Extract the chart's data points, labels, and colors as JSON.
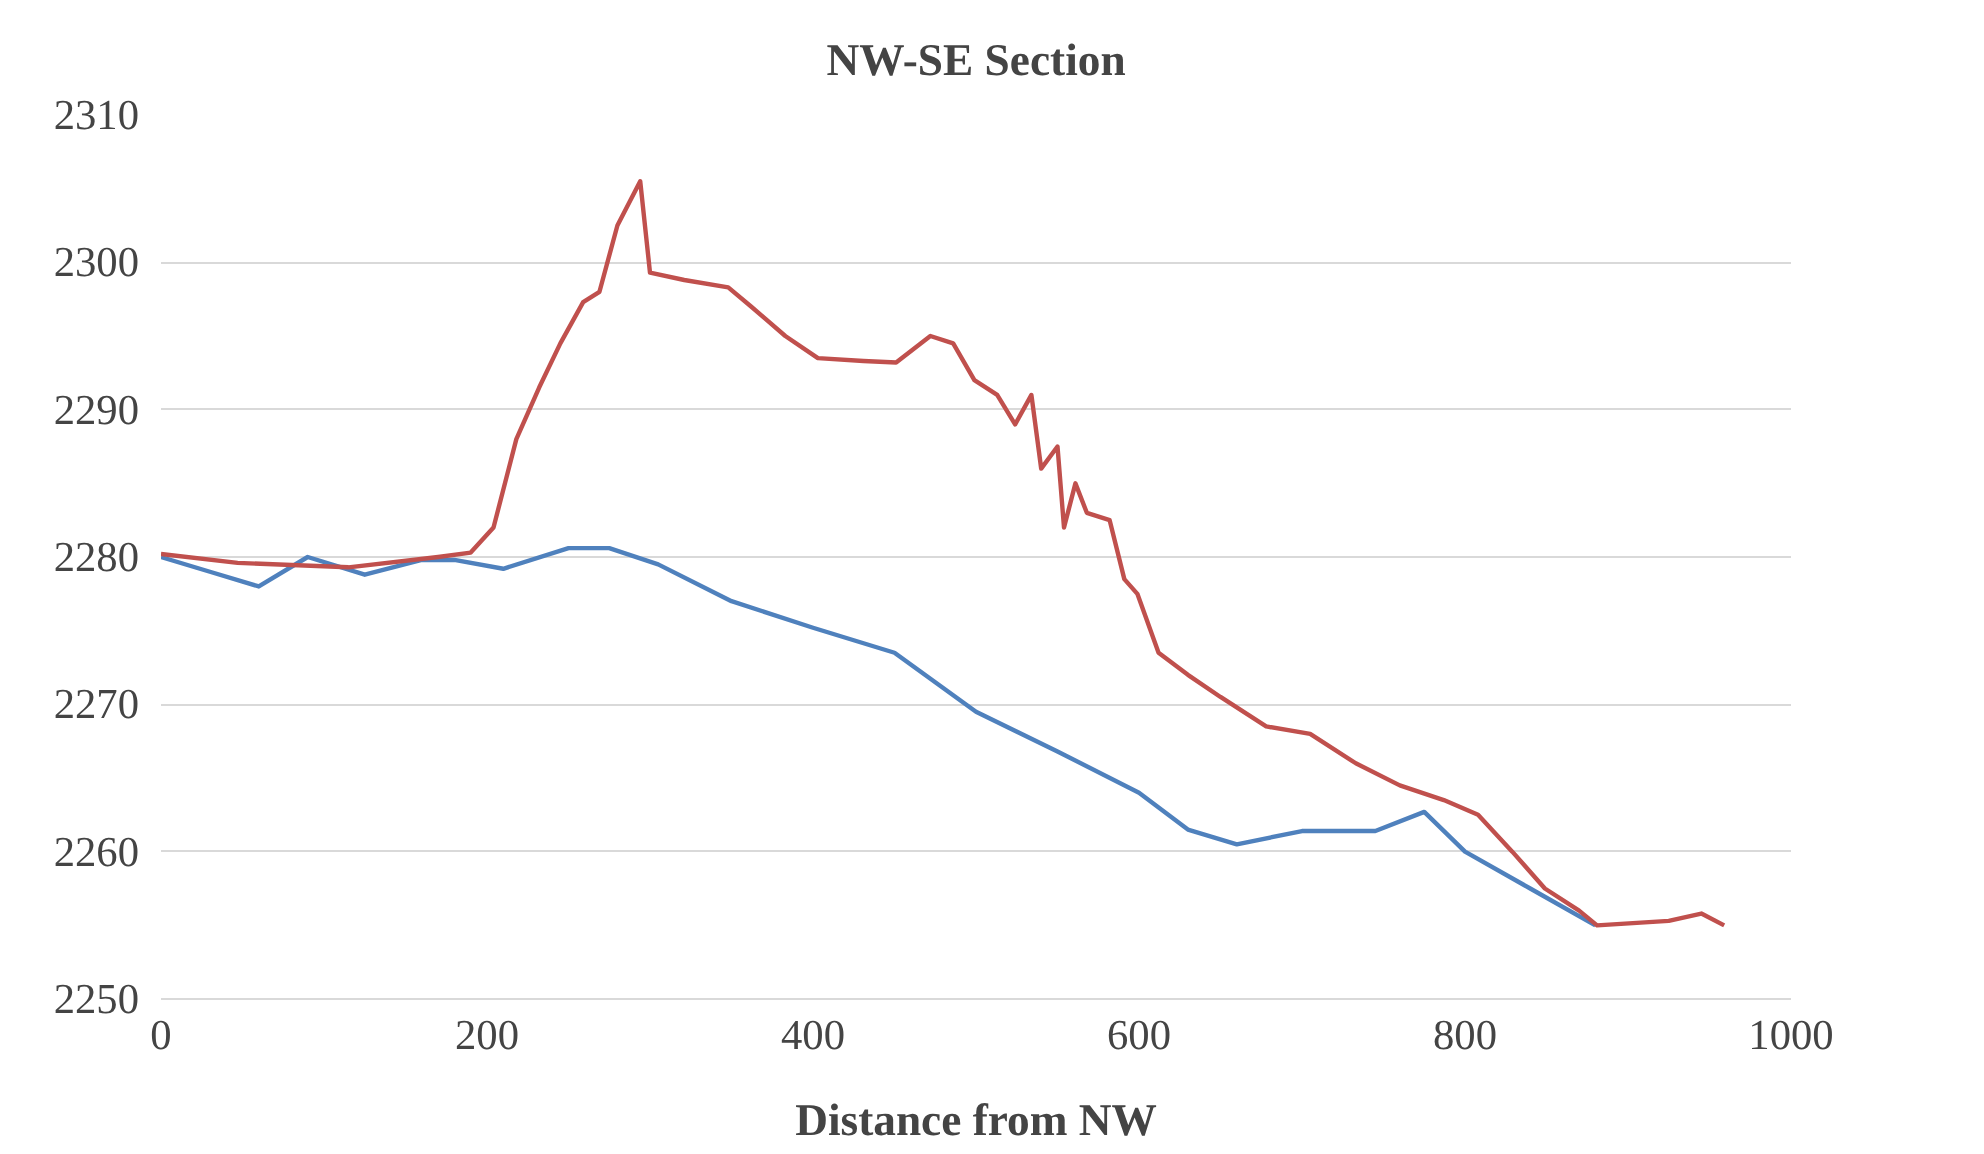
{
  "chart_data": {
    "type": "line",
    "title": "NW-SE Section",
    "xlabel": "Distance from NW",
    "xlim": [
      0,
      1000
    ],
    "xticks": [
      0,
      200,
      400,
      600,
      800,
      1000
    ],
    "ylim": [
      2250,
      2310
    ],
    "yticks": [
      2250,
      2260,
      2270,
      2280,
      2290,
      2300,
      2310
    ],
    "grid": "y",
    "series": [
      {
        "color": "#4f81bd",
        "x": [
          0,
          30,
          60,
          90,
          125,
          160,
          180,
          210,
          250,
          275,
          305,
          350,
          400,
          450,
          500,
          550,
          600,
          630,
          660,
          700,
          745,
          775,
          800,
          840,
          880
        ],
        "values": [
          2280,
          2279,
          2278,
          2280,
          2278.8,
          2279.8,
          2279.8,
          2279.2,
          2280.6,
          2280.6,
          2279.5,
          2277,
          2275.2,
          2273.5,
          2269.5,
          2266.8,
          2264,
          2261.5,
          2260.5,
          2261.4,
          2261.4,
          2262.7,
          2260,
          2257.5,
          2255
        ]
      },
      {
        "color": "#c0504d",
        "x": [
          0,
          47,
          115,
          170,
          190,
          204,
          218,
          232,
          245,
          259,
          269,
          280,
          294,
          300,
          321,
          348,
          362,
          383,
          403,
          431,
          451,
          472,
          486,
          499,
          513,
          524,
          534,
          540,
          550,
          554,
          561,
          568,
          582,
          591,
          599,
          612,
          630,
          650,
          678,
          705,
          733,
          760,
          787,
          808,
          829,
          849,
          870,
          881,
          925,
          945,
          959
        ],
        "values": [
          2280.2,
          2279.6,
          2279.3,
          2280,
          2280.3,
          2282,
          2288,
          2291.5,
          2294.5,
          2297.3,
          2298,
          2302.5,
          2305.5,
          2299.3,
          2298.8,
          2298.3,
          2297,
          2295,
          2293.5,
          2293.3,
          2293.2,
          2295,
          2294.5,
          2292,
          2291,
          2289,
          2291,
          2286,
          2287.5,
          2282,
          2285,
          2283,
          2282.5,
          2278.5,
          2277.5,
          2273.5,
          2272,
          2270.5,
          2268.5,
          2268,
          2266,
          2264.5,
          2263.5,
          2262.5,
          2260,
          2257.5,
          2256,
          2255,
          2255.3,
          2255.8,
          2255
        ]
      }
    ]
  }
}
